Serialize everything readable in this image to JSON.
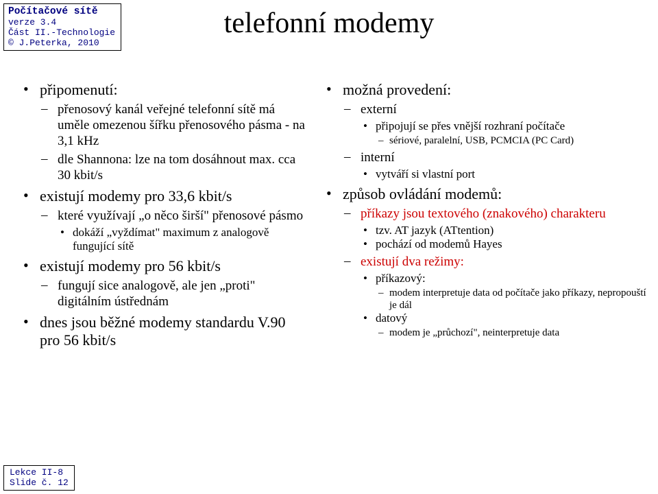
{
  "header": {
    "title": "Počítačové sítě",
    "version": "verze 3.4",
    "part": "Část II.-Technologie",
    "author": "© J.Peterka, 2010"
  },
  "slide_title": "telefonní modemy",
  "accent_color": "#cc0000",
  "footer": {
    "line1": "Lekce II-8",
    "line2": "Slide č. 12"
  },
  "left": [
    {
      "t": "připomenutí:",
      "children": [
        {
          "t": "přenosový kanál veřejné telefonní sítě má uměle omezenou šířku přenosového pásma - na 3,1 kHz"
        },
        {
          "t": "dle Shannona: lze na tom dosáhnout max. cca 30 kbit/s"
        }
      ]
    },
    {
      "t": "existují modemy pro 33,6 kbit/s",
      "children": [
        {
          "t": "které využívají „o něco širší\" přenosové pásmo",
          "children": [
            {
              "t": "dokáží „vyždímat\" maximum z analogově fungující sítě"
            }
          ]
        }
      ]
    },
    {
      "t": "existují modemy pro 56 kbit/s",
      "children": [
        {
          "t": "fungují sice analogově, ale jen „proti\" digitálním ústřednám"
        }
      ]
    },
    {
      "t": "dnes jsou běžné modemy standardu V.90 pro 56 kbit/s"
    }
  ],
  "right": [
    {
      "t": "možná provedení:",
      "children": [
        {
          "t": "externí",
          "children": [
            {
              "t": "připojují se přes vnější rozhraní počítače",
              "children": [
                {
                  "t": "sériové, paralelní, USB, PCMCIA (PC Card)"
                }
              ]
            }
          ]
        },
        {
          "t": "interní",
          "children": [
            {
              "t": "vytváří si vlastní port"
            }
          ]
        }
      ]
    },
    {
      "t": "způsob ovládání modemů:",
      "children": [
        {
          "t": "příkazy jsou textového (znakového) charakteru",
          "red": true,
          "children": [
            {
              "t": "tzv. AT jazyk (ATtention)"
            },
            {
              "t": "pochází od modemů Hayes"
            }
          ]
        },
        {
          "t": "existují dva režimy:",
          "red": true,
          "children": [
            {
              "t": "příkazový:",
              "children": [
                {
                  "t": "modem interpretuje data od počítače jako příkazy, nepropouští je dál"
                }
              ]
            },
            {
              "t": "datový",
              "children": [
                {
                  "t": "modem je „průchozí\", neinterpretuje data"
                }
              ]
            }
          ]
        }
      ]
    }
  ]
}
